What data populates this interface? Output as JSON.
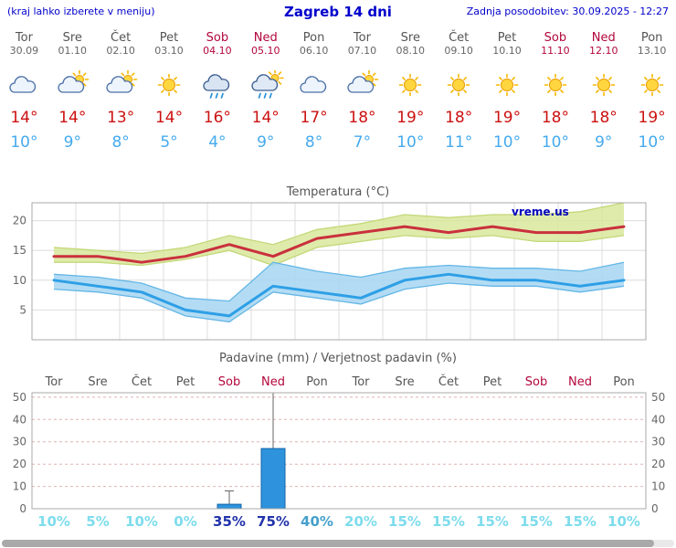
{
  "header": {
    "note": "(kraj lahko izberete v meniju)",
    "title": "Zagreb 14 dni",
    "updated": "Zadnja posodobitev: 30.09.2025 - 12:27"
  },
  "watermark": "vreme.us",
  "colors": {
    "prob_cyan": "#7ddcec",
    "prob_navy": "#2233aa",
    "prob_blue": "#46a0cc",
    "tmax_text": "#cc1111",
    "tmin_text": "#45aaee",
    "weekend_text": "#b3063c",
    "header_blue": "#0000cc"
  },
  "days": [
    {
      "name": "Tor",
      "date": "30.09",
      "weekend": false,
      "icon": "cloud",
      "tmax": "14°",
      "tmin": "10°",
      "prob": "10%",
      "prob_color": "prob_cyan"
    },
    {
      "name": "Sre",
      "date": "01.10",
      "weekend": false,
      "icon": "partly",
      "tmax": "14°",
      "tmin": "9°",
      "prob": "5%",
      "prob_color": "prob_cyan"
    },
    {
      "name": "Čet",
      "date": "02.10",
      "weekend": false,
      "icon": "partly",
      "tmax": "13°",
      "tmin": "8°",
      "prob": "10%",
      "prob_color": "prob_cyan"
    },
    {
      "name": "Pet",
      "date": "03.10",
      "weekend": false,
      "icon": "sun",
      "tmax": "14°",
      "tmin": "5°",
      "prob": "0%",
      "prob_color": "prob_cyan"
    },
    {
      "name": "Sob",
      "date": "04.10",
      "weekend": true,
      "icon": "rain",
      "tmax": "16°",
      "tmin": "4°",
      "prob": "35%",
      "prob_color": "prob_navy"
    },
    {
      "name": "Ned",
      "date": "05.10",
      "weekend": true,
      "icon": "sun-rain",
      "tmax": "14°",
      "tmin": "9°",
      "prob": "75%",
      "prob_color": "prob_navy"
    },
    {
      "name": "Pon",
      "date": "06.10",
      "weekend": false,
      "icon": "cloud",
      "tmax": "17°",
      "tmin": "8°",
      "prob": "40%",
      "prob_color": "prob_blue"
    },
    {
      "name": "Tor",
      "date": "07.10",
      "weekend": false,
      "icon": "partly",
      "tmax": "18°",
      "tmin": "7°",
      "prob": "20%",
      "prob_color": "prob_cyan"
    },
    {
      "name": "Sre",
      "date": "08.10",
      "weekend": false,
      "icon": "sun",
      "tmax": "19°",
      "tmin": "10°",
      "prob": "15%",
      "prob_color": "prob_cyan"
    },
    {
      "name": "Čet",
      "date": "09.10",
      "weekend": false,
      "icon": "sun",
      "tmax": "18°",
      "tmin": "11°",
      "prob": "15%",
      "prob_color": "prob_cyan"
    },
    {
      "name": "Pet",
      "date": "10.10",
      "weekend": false,
      "icon": "sun",
      "tmax": "19°",
      "tmin": "10°",
      "prob": "15%",
      "prob_color": "prob_cyan"
    },
    {
      "name": "Sob",
      "date": "11.10",
      "weekend": true,
      "icon": "sun",
      "tmax": "18°",
      "tmin": "10°",
      "prob": "15%",
      "prob_color": "prob_cyan"
    },
    {
      "name": "Ned",
      "date": "12.10",
      "weekend": true,
      "icon": "sun",
      "tmax": "18°",
      "tmin": "9°",
      "prob": "15%",
      "prob_color": "prob_cyan"
    },
    {
      "name": "Pon",
      "date": "13.10",
      "weekend": false,
      "icon": "sun",
      "tmax": "19°",
      "tmin": "10°",
      "prob": "10%",
      "prob_color": "prob_cyan"
    }
  ],
  "chart_data": [
    {
      "type": "line",
      "title": "Temperatura (°C)",
      "categories": [
        "Tor 30.09",
        "Sre 01.10",
        "Čet 02.10",
        "Pet 03.10",
        "Sob 04.10",
        "Ned 05.10",
        "Pon 06.10",
        "Tor 07.10",
        "Sre 08.10",
        "Čet 09.10",
        "Pet 10.10",
        "Sob 11.10",
        "Ned 12.10",
        "Pon 13.10"
      ],
      "ylim": [
        0,
        23
      ],
      "yticks": [
        5,
        10,
        15,
        20
      ],
      "series": [
        {
          "name": "temp-max",
          "color": "#c9313d",
          "values": [
            14,
            14,
            13,
            14,
            16,
            14,
            17,
            18,
            19,
            18,
            19,
            18,
            18,
            19
          ]
        },
        {
          "name": "temp-min",
          "color": "#2e9fe6",
          "values": [
            10,
            9,
            8,
            5,
            4,
            9,
            8,
            7,
            10,
            11,
            10,
            10,
            9,
            10
          ]
        }
      ],
      "bands": [
        {
          "name": "temp-max-range",
          "color": "#d9e89c",
          "opacity": 0.85,
          "edge": "#c3d878",
          "upper": [
            15.5,
            15,
            14.5,
            15.5,
            17.5,
            16,
            18.5,
            19.5,
            21,
            20.5,
            21,
            21,
            21.5,
            23
          ],
          "lower": [
            13,
            13,
            12.5,
            13.5,
            15,
            12.5,
            15.5,
            16.5,
            17.5,
            17,
            17.5,
            16.5,
            16.5,
            17.5
          ]
        },
        {
          "name": "temp-min-range",
          "color": "#a6d6f2",
          "opacity": 0.85,
          "edge": "#64b6e6",
          "upper": [
            11,
            10.5,
            9.5,
            7,
            6.5,
            13,
            11.5,
            10.5,
            12,
            12.5,
            12,
            12,
            11.5,
            13
          ],
          "lower": [
            8.5,
            8,
            7,
            4,
            3,
            8,
            7,
            6,
            8.5,
            9.5,
            9,
            9,
            8,
            9
          ]
        }
      ],
      "grid": true,
      "legend": "none"
    },
    {
      "type": "bar",
      "title": "Padavine (mm) / Verjetnost padavin (%)",
      "categories": [
        "Tor",
        "Sre",
        "Čet",
        "Pet",
        "Sob",
        "Ned",
        "Pon",
        "Tor",
        "Sre",
        "Čet",
        "Pet",
        "Sob",
        "Ned",
        "Pon"
      ],
      "ylim": [
        0,
        52
      ],
      "yticks": [
        0,
        10,
        20,
        30,
        40,
        50
      ],
      "values": [
        0,
        0,
        0,
        0,
        2,
        27,
        0,
        0,
        0,
        0,
        0,
        0,
        0,
        0
      ],
      "whiskers": [
        0,
        0,
        0,
        0,
        8,
        52,
        0,
        0,
        0,
        0,
        0,
        0,
        0,
        0
      ],
      "bar_color": "#2e93dc",
      "bar_edge": "#1565a8",
      "probabilities": [
        "10%",
        "5%",
        "10%",
        "0%",
        "35%",
        "75%",
        "40%",
        "20%",
        "15%",
        "15%",
        "15%",
        "15%",
        "15%",
        "10%"
      ],
      "grid": true,
      "legend": "none"
    }
  ]
}
